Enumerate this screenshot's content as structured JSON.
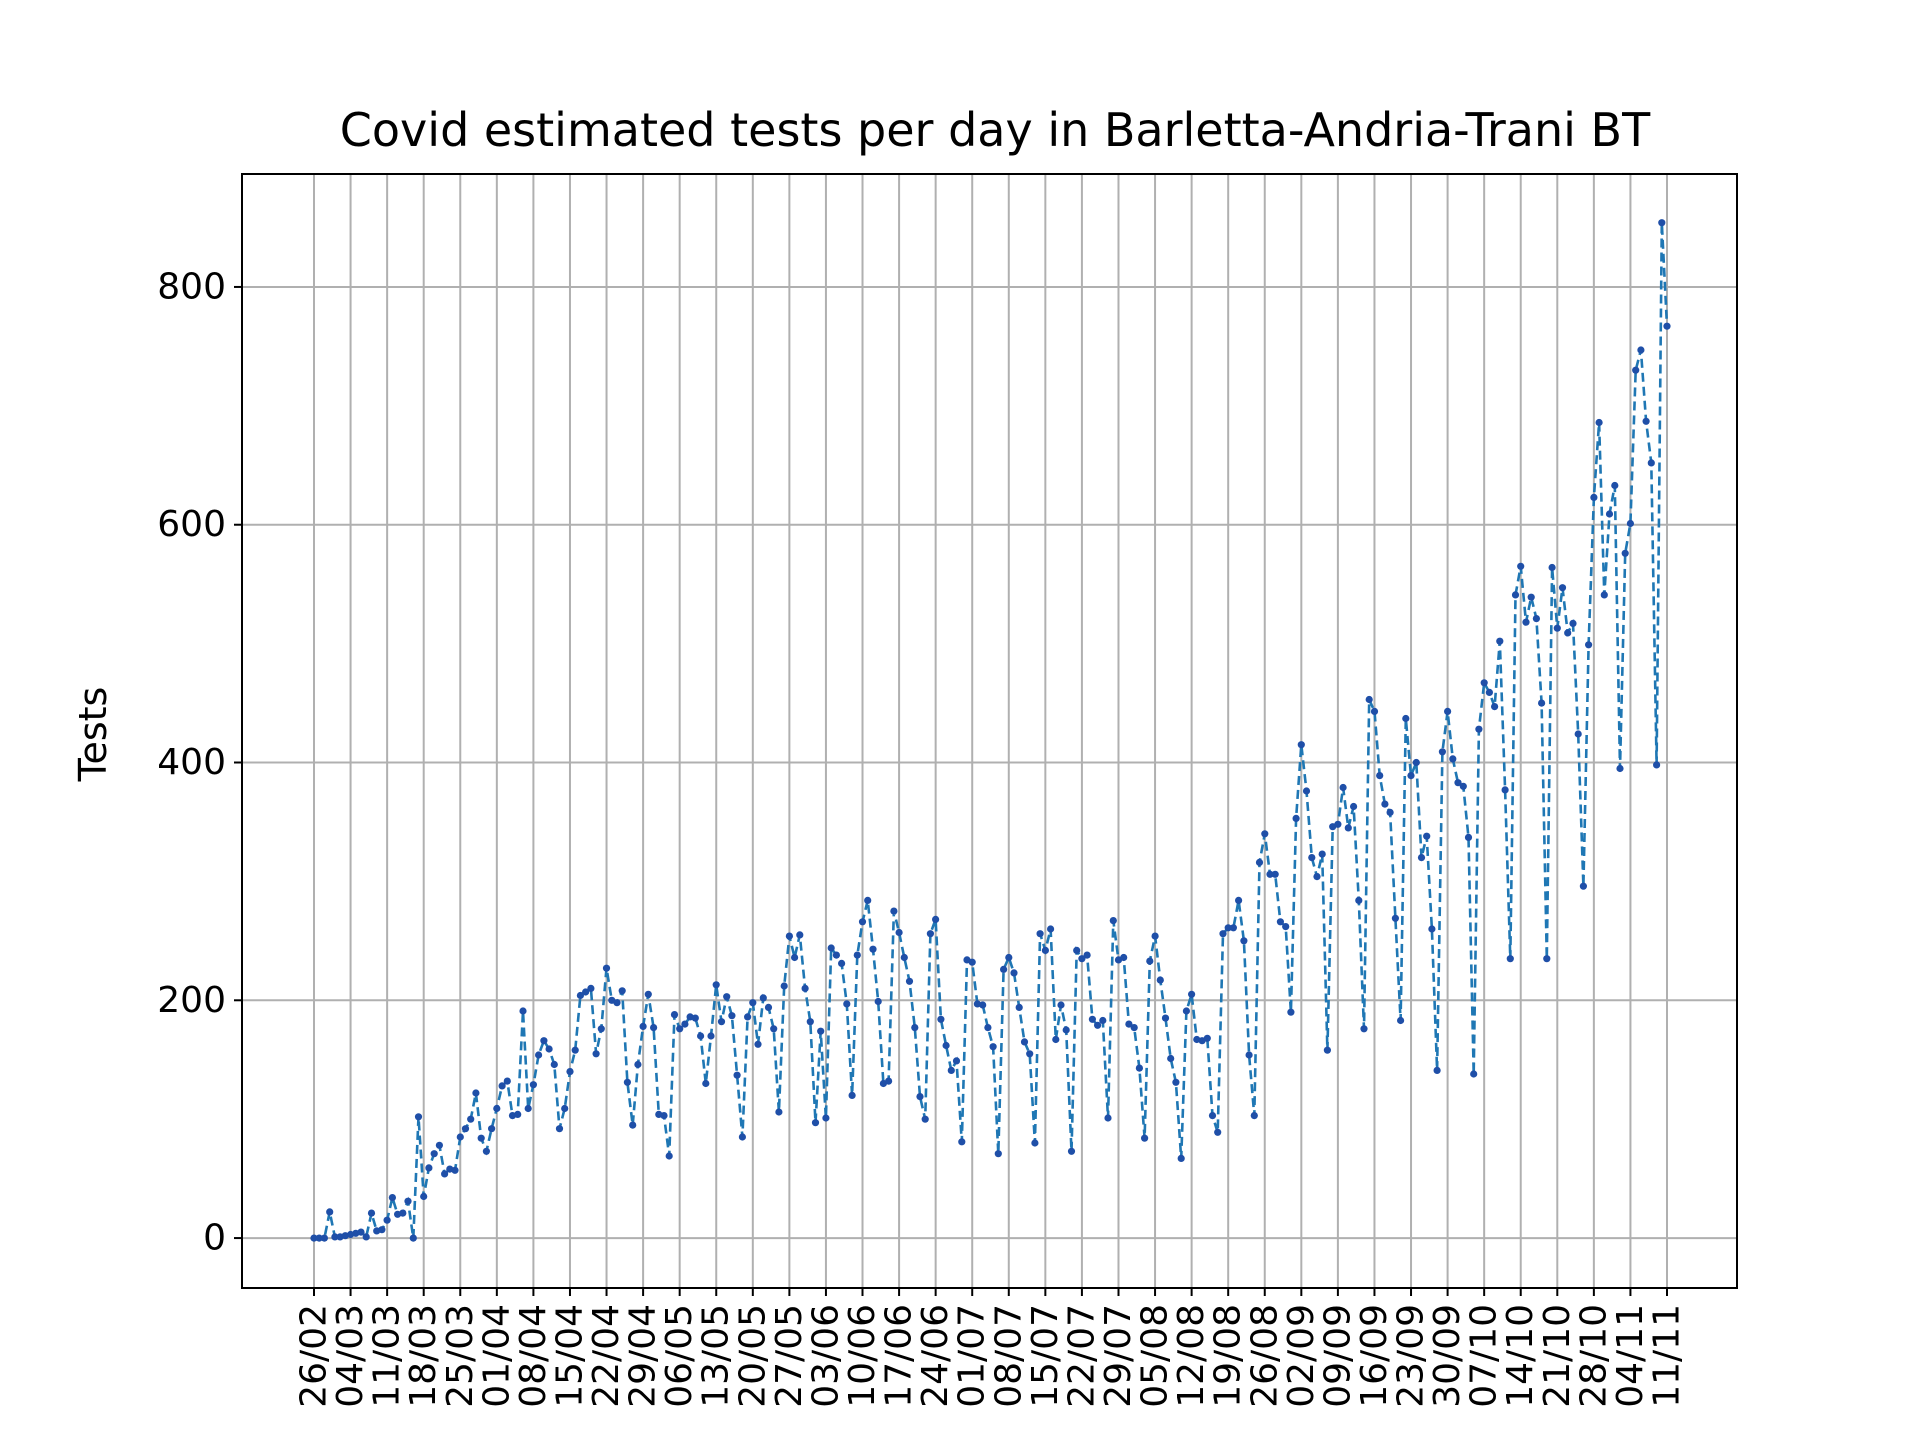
{
  "chart_data": {
    "type": "line",
    "title": "Covid estimated tests per day in Barletta-Andria-Trani BT",
    "xlabel": "",
    "ylabel": "Tests",
    "ylim": [
      -42,
      895
    ],
    "yticks": [
      0,
      200,
      400,
      600,
      800
    ],
    "xtick_labels": [
      "26/02",
      "04/03",
      "11/03",
      "18/03",
      "25/03",
      "01/04",
      "08/04",
      "15/04",
      "22/04",
      "29/04",
      "06/05",
      "13/05",
      "20/05",
      "27/05",
      "03/06",
      "10/06",
      "17/06",
      "24/06",
      "01/07",
      "08/07",
      "15/07",
      "22/07",
      "29/07",
      "05/08",
      "12/08",
      "19/08",
      "26/08",
      "02/09",
      "09/09",
      "16/09",
      "23/09",
      "30/09",
      "07/10",
      "14/10",
      "21/10",
      "28/10",
      "04/11",
      "11/11"
    ],
    "x_start": "26/02",
    "x_step_days": 1,
    "grid": true,
    "colors": {
      "line": "#1f77b4",
      "marker": "#1f4fa8"
    },
    "series": [
      {
        "values": [
          0,
          0,
          0,
          22,
          1,
          1,
          2,
          3,
          4,
          5,
          1,
          21,
          6,
          7,
          15,
          34,
          20,
          21,
          31,
          0,
          102,
          35,
          59,
          71,
          78,
          54,
          58,
          57,
          85,
          92,
          100,
          122,
          84,
          73,
          92,
          109,
          128,
          132,
          103,
          104,
          191,
          109,
          129,
          154,
          166,
          159,
          146,
          92,
          109,
          140,
          158,
          204,
          207,
          210,
          155,
          176,
          227,
          200,
          198,
          208,
          131,
          95,
          146,
          178,
          205,
          177,
          104,
          103,
          69,
          188,
          176,
          180,
          186,
          185,
          170,
          130,
          170,
          213,
          182,
          203,
          187,
          137,
          85,
          186,
          198,
          163,
          202,
          194,
          176,
          106,
          212,
          254,
          236,
          255,
          210,
          182,
          97,
          174,
          101,
          244,
          238,
          231,
          197,
          120,
          238,
          266,
          284,
          243,
          199,
          130,
          132,
          275,
          257,
          236,
          216,
          177,
          119,
          100,
          256,
          268,
          184,
          162,
          141,
          149,
          81,
          234,
          232,
          197,
          196,
          177,
          161,
          71,
          226,
          236,
          223,
          194,
          165,
          155,
          80,
          256,
          242,
          260,
          167,
          196,
          175,
          73,
          242,
          235,
          238,
          184,
          179,
          183,
          101,
          267,
          234,
          236,
          180,
          177,
          143,
          84,
          233,
          254,
          217,
          185,
          151,
          131,
          67,
          191,
          205,
          167,
          166,
          168,
          103,
          89,
          256,
          261,
          261,
          284,
          250,
          154,
          103,
          316,
          340,
          306,
          306,
          266,
          262,
          190,
          353,
          415,
          376,
          320,
          304,
          323,
          158,
          346,
          348,
          379,
          345,
          363,
          284,
          176,
          453,
          443,
          389,
          365,
          358,
          269,
          183,
          437,
          389,
          400,
          320,
          338,
          260,
          141,
          409,
          443,
          403,
          383,
          380,
          337,
          138,
          428,
          467,
          459,
          447,
          502,
          377,
          235,
          541,
          565,
          518,
          539,
          521,
          450,
          235,
          564,
          513,
          547,
          509,
          517,
          424,
          296,
          499,
          623,
          686,
          541,
          609,
          633,
          395,
          576,
          601,
          730,
          747,
          687,
          652,
          398,
          854,
          767
        ]
      }
    ]
  }
}
